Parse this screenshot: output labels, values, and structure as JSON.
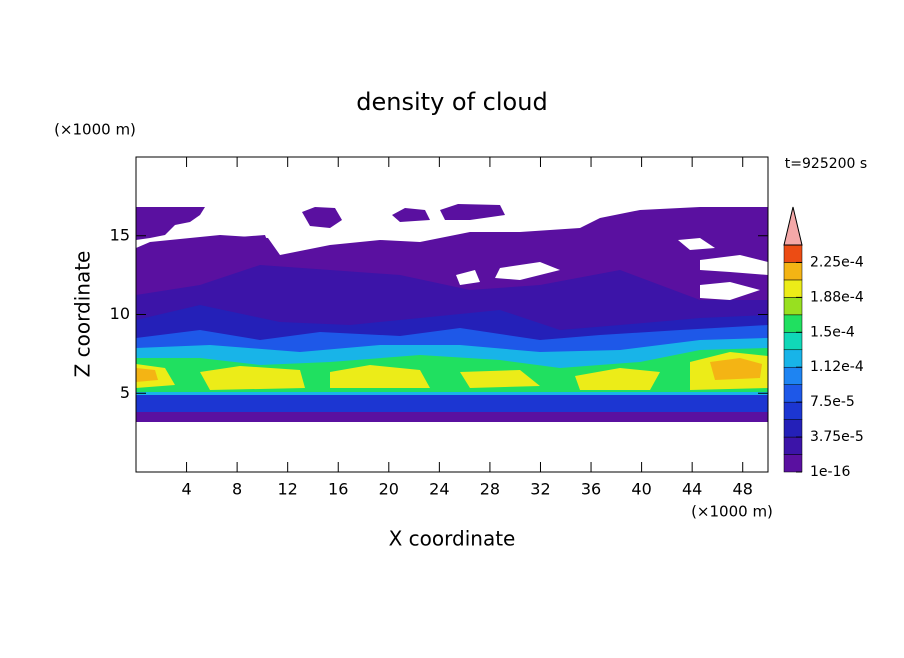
{
  "chart_data": {
    "type": "contour",
    "title": "density of cloud",
    "xlabel": "X coordinate",
    "ylabel": "Z coordinate",
    "xunit": "(×1000 m)",
    "yunit": "(×1000 m)",
    "annotation": "t=925200 s",
    "xlim": [
      0,
      50
    ],
    "xticks": [
      4,
      8,
      12,
      16,
      20,
      24,
      28,
      32,
      36,
      40,
      44,
      48
    ],
    "ylim": [
      0,
      20
    ],
    "yticks": [
      5,
      10,
      15
    ],
    "colorbar": {
      "clim": [
        1e-16,
        0.00024375
      ],
      "ticks": [
        {
          "value": 1e-16,
          "label": "1e-16"
        },
        {
          "value": 3.75e-05,
          "label": "3.75e-5"
        },
        {
          "value": 7.5e-05,
          "label": "7.5e-5"
        },
        {
          "value": 0.0001125,
          "label": "1.12e-4"
        },
        {
          "value": 0.00015,
          "label": "1.5e-4"
        },
        {
          "value": 0.0001875,
          "label": "1.88e-4"
        },
        {
          "value": 0.000225,
          "label": "2.25e-4"
        }
      ],
      "colors": [
        "#5a10a0",
        "#3c14a8",
        "#2420b8",
        "#1c36d2",
        "#1e58e8",
        "#1e84f2",
        "#18b4e8",
        "#10d8b8",
        "#20e060",
        "#98e020",
        "#ecec18",
        "#f4b414",
        "#ec4c14"
      ],
      "over_color": "#f4a8a8"
    }
  }
}
